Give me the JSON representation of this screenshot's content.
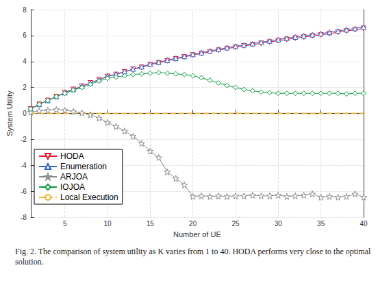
{
  "chart_data": {
    "type": "line",
    "caption": "Fig. 2. The comparison of system utility as K varies from 1 to 40. HODA performs very close to the optimal solution.",
    "x_label": "Number of UE",
    "y_label": "System Utility",
    "x": [
      1,
      2,
      3,
      4,
      5,
      6,
      7,
      8,
      9,
      10,
      11,
      12,
      13,
      14,
      15,
      16,
      17,
      18,
      19,
      20,
      21,
      22,
      23,
      24,
      25,
      26,
      27,
      28,
      29,
      30,
      31,
      32,
      33,
      34,
      35,
      36,
      37,
      38,
      39,
      40
    ],
    "xlim": [
      1,
      40
    ],
    "xticks": [
      5,
      10,
      15,
      20,
      25,
      30,
      35,
      40
    ],
    "ylim": [
      -8,
      8
    ],
    "yticks": [
      -8,
      -6,
      -4,
      -2,
      0,
      2,
      4,
      6,
      8
    ],
    "grid": true,
    "legend": "lower left",
    "series": [
      {
        "name": "HODA",
        "color": "#e8112d",
        "marker": "triangle-down",
        "line_style": "solid",
        "values": [
          0.35,
          0.7,
          1.0,
          1.3,
          1.6,
          1.85,
          2.1,
          2.35,
          2.6,
          2.85,
          3.0,
          3.2,
          3.4,
          3.55,
          3.75,
          3.9,
          4.05,
          4.2,
          4.35,
          4.5,
          4.62,
          4.75,
          4.87,
          5.0,
          5.1,
          5.2,
          5.3,
          5.4,
          5.5,
          5.6,
          5.7,
          5.8,
          5.88,
          5.97,
          6.05,
          6.15,
          6.25,
          6.35,
          6.45,
          6.55
        ]
      },
      {
        "name": "Enumeration",
        "color": "#2a62c9",
        "marker": "triangle",
        "line_style": "solid",
        "values": [
          0.35,
          0.7,
          1.0,
          1.3,
          1.6,
          1.85,
          2.1,
          2.35,
          2.6,
          2.87,
          3.03,
          3.23,
          3.43,
          3.6,
          3.8,
          3.95,
          4.1,
          4.25,
          4.4,
          4.55,
          4.68,
          4.81,
          4.94,
          5.07,
          5.18,
          5.28,
          5.38,
          5.49,
          5.59,
          5.69,
          5.79,
          5.89,
          5.98,
          6.07,
          6.15,
          6.25,
          6.35,
          6.45,
          6.55,
          6.65
        ]
      },
      {
        "name": "ARJOA",
        "color": "#8c8c8c",
        "marker": "star",
        "line_style": "solid",
        "values": [
          0.1,
          0.2,
          0.25,
          0.3,
          0.25,
          0.15,
          0.05,
          -0.1,
          -0.35,
          -0.7,
          -1.0,
          -1.35,
          -1.75,
          -2.3,
          -2.9,
          -3.4,
          -4.5,
          -5.0,
          -5.5,
          -6.4,
          -6.35,
          -6.4,
          -6.35,
          -6.4,
          -6.35,
          -6.35,
          -6.3,
          -6.35,
          -6.35,
          -6.3,
          -6.4,
          -6.35,
          -6.3,
          -6.2,
          -6.45,
          -6.4,
          -6.45,
          -6.4,
          -6.2,
          -6.45
        ]
      },
      {
        "name": "IOJOA",
        "color": "#0a9a3c",
        "marker": "diamond",
        "line_style": "solid",
        "values": [
          0.35,
          0.7,
          1.0,
          1.3,
          1.55,
          1.8,
          2.0,
          2.25,
          2.5,
          2.7,
          2.8,
          2.9,
          3.0,
          3.05,
          3.1,
          3.15,
          3.1,
          3.05,
          3.0,
          2.9,
          2.75,
          2.55,
          2.35,
          2.15,
          2.0,
          1.85,
          1.75,
          1.65,
          1.6,
          1.55,
          1.55,
          1.55,
          1.55,
          1.55,
          1.55,
          1.55,
          1.55,
          1.5,
          1.55,
          1.55
        ]
      },
      {
        "name": "Local Execution",
        "color": "#f2b233",
        "marker": "none",
        "line_style": "dashed",
        "values": [
          0,
          0,
          0,
          0,
          0,
          0,
          0,
          0,
          0,
          0,
          0,
          0,
          0,
          0,
          0,
          0,
          0,
          0,
          0,
          0,
          0,
          0,
          0,
          0,
          0,
          0,
          0,
          0,
          0,
          0,
          0,
          0,
          0,
          0,
          0,
          0,
          0,
          0,
          0,
          0
        ]
      }
    ]
  }
}
